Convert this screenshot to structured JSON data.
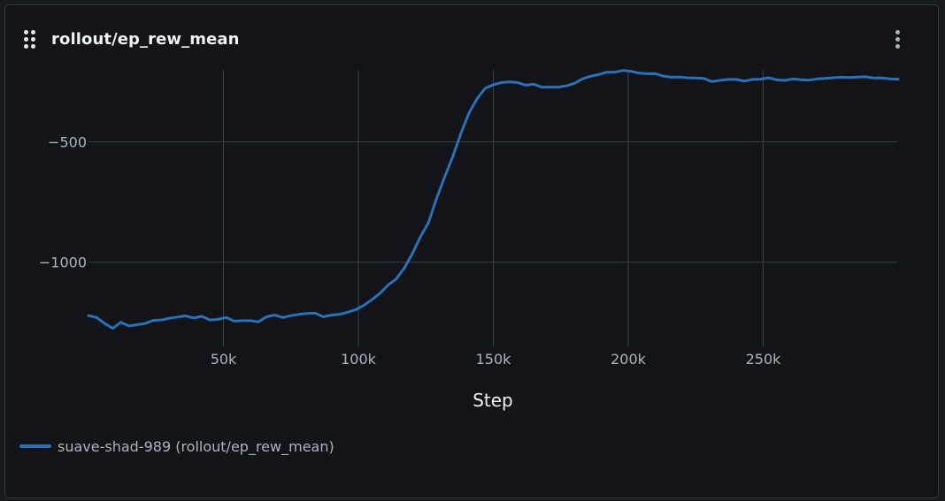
{
  "panel": {
    "title": "rollout/ep_rew_mean",
    "drag_icon": "drag-handle-icon",
    "menu_icon": "more-vertical-icon"
  },
  "colors": {
    "series": "#2a71b7",
    "grid": "#3b4049",
    "tick_text": "#aeb3ba",
    "label_text": "#eef0f2"
  },
  "chart_data": {
    "type": "line",
    "title": "rollout/ep_rew_mean",
    "xlabel": "Step",
    "ylabel": "",
    "xlim": [
      0,
      300000
    ],
    "ylim": [
      -1350,
      -200
    ],
    "x_ticks": [
      {
        "value": 50000,
        "label": "50k"
      },
      {
        "value": 100000,
        "label": "100k"
      },
      {
        "value": 150000,
        "label": "150k"
      },
      {
        "value": 200000,
        "label": "200k"
      },
      {
        "value": 250000,
        "label": "250k"
      }
    ],
    "y_ticks": [
      {
        "value": -500,
        "label": "−500"
      },
      {
        "value": -1000,
        "label": "−1000"
      }
    ],
    "grid": true,
    "legend_position": "bottom-left",
    "series": [
      {
        "name": "suave-shad-989 (rollout/ep_rew_mean)",
        "color": "#2a71b7",
        "points": [
          [
            0,
            -1222
          ],
          [
            3000,
            -1230
          ],
          [
            6000,
            -1255
          ],
          [
            9000,
            -1275
          ],
          [
            12000,
            -1250
          ],
          [
            15000,
            -1265
          ],
          [
            18000,
            -1260
          ],
          [
            21000,
            -1255
          ],
          [
            24000,
            -1242
          ],
          [
            27000,
            -1240
          ],
          [
            30000,
            -1233
          ],
          [
            33000,
            -1228
          ],
          [
            36000,
            -1223
          ],
          [
            39000,
            -1232
          ],
          [
            42000,
            -1225
          ],
          [
            45000,
            -1240
          ],
          [
            48000,
            -1238
          ],
          [
            51000,
            -1230
          ],
          [
            54000,
            -1245
          ],
          [
            57000,
            -1243
          ],
          [
            60000,
            -1243
          ],
          [
            63000,
            -1248
          ],
          [
            66000,
            -1227
          ],
          [
            69000,
            -1220
          ],
          [
            72000,
            -1230
          ],
          [
            75000,
            -1222
          ],
          [
            78000,
            -1217
          ],
          [
            81000,
            -1213
          ],
          [
            84000,
            -1212
          ],
          [
            87000,
            -1227
          ],
          [
            90000,
            -1220
          ],
          [
            93000,
            -1217
          ],
          [
            96000,
            -1208
          ],
          [
            99000,
            -1198
          ],
          [
            102000,
            -1180
          ],
          [
            105000,
            -1156
          ],
          [
            108000,
            -1130
          ],
          [
            111000,
            -1095
          ],
          [
            114000,
            -1070
          ],
          [
            117000,
            -1025
          ],
          [
            120000,
            -965
          ],
          [
            123000,
            -895
          ],
          [
            126000,
            -835
          ],
          [
            129000,
            -735
          ],
          [
            132000,
            -645
          ],
          [
            135000,
            -560
          ],
          [
            138000,
            -465
          ],
          [
            141000,
            -380
          ],
          [
            144000,
            -320
          ],
          [
            147000,
            -277
          ],
          [
            150000,
            -262
          ],
          [
            153000,
            -253
          ],
          [
            156000,
            -250
          ],
          [
            159000,
            -253
          ],
          [
            162000,
            -264
          ],
          [
            165000,
            -260
          ],
          [
            168000,
            -272
          ],
          [
            171000,
            -272
          ],
          [
            174000,
            -272
          ],
          [
            177000,
            -267
          ],
          [
            180000,
            -257
          ],
          [
            183000,
            -238
          ],
          [
            186000,
            -227
          ],
          [
            189000,
            -220
          ],
          [
            192000,
            -210
          ],
          [
            195000,
            -210
          ],
          [
            198000,
            -203
          ],
          [
            201000,
            -206
          ],
          [
            204000,
            -214
          ],
          [
            207000,
            -216
          ],
          [
            210000,
            -216
          ],
          [
            213000,
            -226
          ],
          [
            216000,
            -231
          ],
          [
            219000,
            -230
          ],
          [
            222000,
            -233
          ],
          [
            225000,
            -234
          ],
          [
            228000,
            -236
          ],
          [
            231000,
            -249
          ],
          [
            234000,
            -244
          ],
          [
            237000,
            -240
          ],
          [
            240000,
            -240
          ],
          [
            243000,
            -247
          ],
          [
            246000,
            -240
          ],
          [
            249000,
            -239
          ],
          [
            252000,
            -233
          ],
          [
            255000,
            -242
          ],
          [
            258000,
            -244
          ],
          [
            261000,
            -238
          ],
          [
            264000,
            -241
          ],
          [
            267000,
            -243
          ],
          [
            270000,
            -238
          ],
          [
            273000,
            -236
          ],
          [
            276000,
            -233
          ],
          [
            279000,
            -231
          ],
          [
            282000,
            -232
          ],
          [
            285000,
            -230
          ],
          [
            288000,
            -229
          ],
          [
            291000,
            -234
          ],
          [
            294000,
            -234
          ],
          [
            297000,
            -238
          ],
          [
            300000,
            -239
          ]
        ]
      }
    ]
  }
}
